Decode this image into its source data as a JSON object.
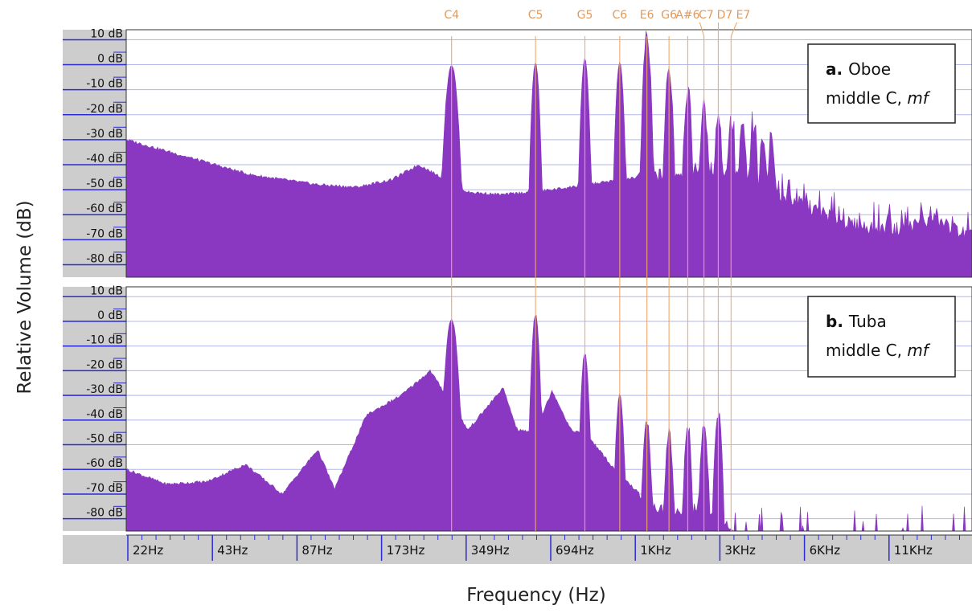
{
  "chart_data": {
    "type": "area",
    "ylabel": "Relative Volume (dB)",
    "xlabel": "Frequency (Hz)",
    "x_scale": "log",
    "xlim_hz": [
      18,
      19000
    ],
    "x_tick_labels": [
      "22Hz",
      "43Hz",
      "87Hz",
      "173Hz",
      "349Hz",
      "694Hz",
      "1KHz",
      "3KHz",
      "6KHz",
      "11KHz"
    ],
    "y_tick_labels": [
      "10 dB",
      "0 dB",
      "-10 dB",
      "-20 dB",
      "-30 dB",
      "-40 dB",
      "-50 dB",
      "-60 dB",
      "-70 dB",
      "-80 dB"
    ],
    "ylim_db": [
      -85,
      14
    ],
    "grid": true,
    "colors": {
      "fill": "#8a38c2",
      "grid": "#b3b6ea",
      "note_lines": "#f0a86b",
      "note_text": "#e39a5a",
      "axis_panel": "#cdcdcd",
      "tick_marks": "#2b2bd8"
    },
    "notes": [
      {
        "label": "C4",
        "freq": 262
      },
      {
        "label": "C5",
        "freq": 523
      },
      {
        "label": "G5",
        "freq": 785
      },
      {
        "label": "C6",
        "freq": 1046
      },
      {
        "label": "E6",
        "freq": 1308
      },
      {
        "label": "G6",
        "freq": 1569
      },
      {
        "label": "A#6",
        "freq": 1831
      },
      {
        "label": "C7",
        "freq": 2092
      },
      {
        "label": "D7",
        "freq": 2354
      },
      {
        "label": "E7",
        "freq": 2615
      }
    ],
    "panels": [
      {
        "name": "Oboe",
        "label_bold": "a.",
        "label_line1": "Oboe",
        "label_line2_prefix": "middle C,",
        "label_line2_italic": "mf",
        "floor": [
          [
            18,
            -30
          ],
          [
            30,
            -37
          ],
          [
            50,
            -44
          ],
          [
            87,
            -48
          ],
          [
            120,
            -49
          ],
          [
            160,
            -46
          ],
          [
            200,
            -40
          ],
          [
            300,
            -51
          ],
          [
            400,
            -52
          ],
          [
            600,
            -50
          ],
          [
            800,
            -48
          ],
          [
            1046,
            -46
          ],
          [
            1500,
            -44
          ],
          [
            2092,
            -41
          ],
          [
            2800,
            -44
          ],
          [
            3500,
            -50
          ],
          [
            5000,
            -57
          ],
          [
            7000,
            -64
          ],
          [
            10000,
            -66
          ],
          [
            14000,
            -62
          ],
          [
            19000,
            -69
          ]
        ],
        "harmonics": [
          {
            "freq": 262,
            "level": 0
          },
          {
            "freq": 523,
            "level": 1
          },
          {
            "freq": 785,
            "level": 2
          },
          {
            "freq": 1046,
            "level": 1
          },
          {
            "freq": 1308,
            "level": 10
          },
          {
            "freq": 1569,
            "level": -2
          },
          {
            "freq": 1831,
            "level": -10
          },
          {
            "freq": 2092,
            "level": -16
          },
          {
            "freq": 2354,
            "level": -20
          },
          {
            "freq": 2615,
            "level": -22
          },
          {
            "freq": 2877,
            "level": -24
          },
          {
            "freq": 3138,
            "level": -26
          },
          {
            "freq": 3400,
            "level": -28
          },
          {
            "freq": 3661,
            "level": -30
          }
        ]
      },
      {
        "name": "Tuba",
        "label_bold": "b.",
        "label_line1": "Tuba",
        "label_line2_prefix": "middle C,",
        "label_line2_italic": "mf",
        "floor": [
          [
            18,
            -60
          ],
          [
            25,
            -66
          ],
          [
            35,
            -65
          ],
          [
            48,
            -58
          ],
          [
            65,
            -70
          ],
          [
            87,
            -52
          ],
          [
            100,
            -68
          ],
          [
            130,
            -38
          ],
          [
            173,
            -30
          ],
          [
            220,
            -20
          ],
          [
            300,
            -44
          ],
          [
            400,
            -27
          ],
          [
            450,
            -44
          ],
          [
            520,
            -45
          ],
          [
            600,
            -28
          ],
          [
            700,
            -44
          ],
          [
            800,
            -46
          ],
          [
            1000,
            -60
          ],
          [
            1400,
            -76
          ],
          [
            2092,
            -78
          ],
          [
            2550,
            -82
          ],
          [
            2700,
            -90
          ],
          [
            19000,
            -90
          ]
        ],
        "harmonics": [
          {
            "freq": 262,
            "level": 1
          },
          {
            "freq": 523,
            "level": 3
          },
          {
            "freq": 785,
            "level": -13
          },
          {
            "freq": 1046,
            "level": -30
          },
          {
            "freq": 1308,
            "level": -40
          },
          {
            "freq": 1569,
            "level": -45
          },
          {
            "freq": 1831,
            "level": -44
          },
          {
            "freq": 2092,
            "level": -42
          },
          {
            "freq": 2354,
            "level": -37
          }
        ]
      }
    ]
  }
}
